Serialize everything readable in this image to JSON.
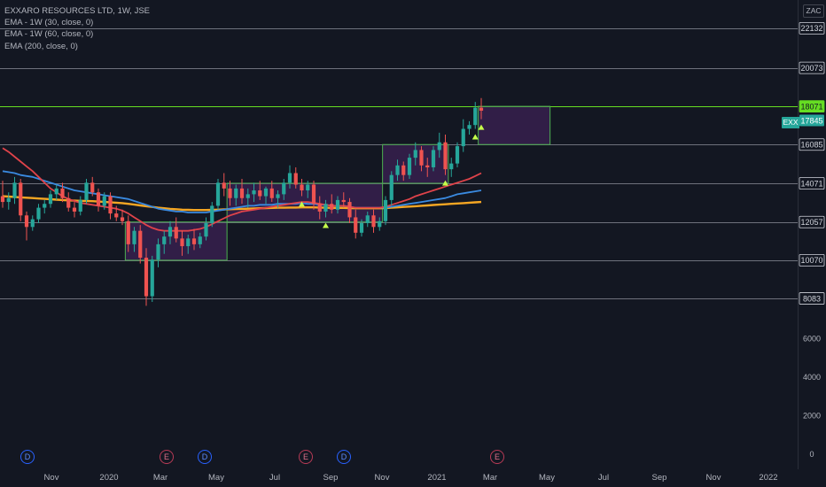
{
  "legend": {
    "title": "EXXARO RESOURCES LTD, 1W, JSE",
    "ema1": "EMA - 1W (30, close, 0)",
    "ema2": "EMA - 1W (60, close, 0)",
    "ema3": "EMA (200, close, 0)"
  },
  "currency": "ZAC",
  "symbol_tag": "EXX",
  "price_axis": {
    "level_labels": [
      "22132",
      "20073",
      "18071",
      "16085",
      "14071",
      "12057",
      "10070",
      "8083"
    ],
    "plain_labels": [
      "6000",
      "4000",
      "2000",
      "0"
    ],
    "last_price_label": "17845",
    "highlight_label": "18071"
  },
  "time_axis": [
    "Nov",
    "2020",
    "Mar",
    "May",
    "Jul",
    "Sep",
    "Nov",
    "2021",
    "Mar",
    "May",
    "Jul",
    "Sep",
    "Nov",
    "2022"
  ],
  "event_badges": [
    "D",
    "E",
    "D",
    "E",
    "D",
    "E"
  ],
  "colors": {
    "background": "#131722",
    "up": "#26a69a",
    "down": "#ef5350",
    "level_line": "#787b86",
    "box_border": "#4caf50",
    "highlight": "#66dd22",
    "ema30": "#e0434a",
    "ema60": "#3a8ae0",
    "ema200": "#f5a623"
  },
  "chart_data": {
    "type": "candlestick",
    "series_name": "EXXARO RESOURCES LTD",
    "ylim": [
      -800,
      23600
    ],
    "support_resistance_levels": [
      22132,
      20073,
      18071,
      16085,
      14071,
      12057,
      10070,
      8083
    ],
    "last_price": 17845,
    "candles": [
      [
        13400,
        14200,
        12800,
        13100
      ],
      [
        13100,
        13600,
        12700,
        13300
      ],
      [
        13300,
        14400,
        13000,
        14100
      ],
      [
        14100,
        14300,
        12100,
        12400
      ],
      [
        12400,
        12600,
        11100,
        11800
      ],
      [
        11800,
        12400,
        11600,
        12200
      ],
      [
        12200,
        13000,
        12000,
        12800
      ],
      [
        12800,
        13200,
        12500,
        13000
      ],
      [
        13000,
        13700,
        12800,
        13500
      ],
      [
        13500,
        14000,
        13200,
        13800
      ],
      [
        13800,
        14100,
        13100,
        13300
      ],
      [
        13300,
        13600,
        12600,
        12800
      ],
      [
        12800,
        13100,
        12300,
        12600
      ],
      [
        12600,
        13400,
        12400,
        13200
      ],
      [
        13200,
        14300,
        13000,
        14100
      ],
      [
        14100,
        14400,
        13400,
        13600
      ],
      [
        13600,
        13800,
        12600,
        12900
      ],
      [
        12900,
        13600,
        12700,
        13400
      ],
      [
        13400,
        13600,
        12200,
        12500
      ],
      [
        12500,
        12900,
        12100,
        12300
      ],
      [
        12300,
        12700,
        11900,
        12100
      ],
      [
        12100,
        12400,
        10500,
        10900
      ],
      [
        10900,
        11800,
        10500,
        11600
      ],
      [
        11600,
        11900,
        9900,
        10200
      ],
      [
        10200,
        10700,
        7700,
        8200
      ],
      [
        8200,
        10300,
        7900,
        10100
      ],
      [
        10100,
        11200,
        9700,
        10900
      ],
      [
        10900,
        11600,
        10400,
        11300
      ],
      [
        11300,
        12100,
        10900,
        11800
      ],
      [
        11800,
        12300,
        11000,
        11200
      ],
      [
        11200,
        11600,
        10300,
        10800
      ],
      [
        10800,
        11400,
        10400,
        11200
      ],
      [
        11200,
        11700,
        10600,
        10900
      ],
      [
        10900,
        11500,
        10700,
        11300
      ],
      [
        11300,
        12300,
        11100,
        12000
      ],
      [
        12000,
        13100,
        11800,
        12900
      ],
      [
        12900,
        14300,
        12700,
        14100
      ],
      [
        14100,
        14600,
        13400,
        13800
      ],
      [
        13800,
        14200,
        12900,
        13300
      ],
      [
        13300,
        14000,
        12900,
        13800
      ],
      [
        13800,
        14300,
        13000,
        13300
      ],
      [
        13300,
        13800,
        12800,
        13500
      ],
      [
        13500,
        14100,
        13100,
        13700
      ],
      [
        13700,
        14200,
        13200,
        13400
      ],
      [
        13400,
        13900,
        13000,
        13800
      ],
      [
        13800,
        14200,
        13100,
        13300
      ],
      [
        13300,
        13700,
        12800,
        13500
      ],
      [
        13500,
        14300,
        13200,
        14100
      ],
      [
        14100,
        15000,
        13800,
        14600
      ],
      [
        14600,
        14900,
        13800,
        14000
      ],
      [
        14000,
        14300,
        13400,
        13700
      ],
      [
        13700,
        14200,
        13300,
        14000
      ],
      [
        14000,
        14200,
        12700,
        13000
      ],
      [
        13000,
        13400,
        12200,
        12600
      ],
      [
        12600,
        13200,
        12300,
        13000
      ],
      [
        13000,
        13500,
        12500,
        12700
      ],
      [
        12700,
        13400,
        12500,
        13200
      ],
      [
        13200,
        13600,
        12800,
        13100
      ],
      [
        13100,
        13300,
        12000,
        12300
      ],
      [
        12300,
        12700,
        11200,
        11500
      ],
      [
        11500,
        12200,
        11300,
        12000
      ],
      [
        12000,
        12600,
        11800,
        12400
      ],
      [
        12400,
        12700,
        11500,
        11800
      ],
      [
        11800,
        12300,
        11600,
        12100
      ],
      [
        12100,
        13400,
        11900,
        13200
      ],
      [
        13200,
        14700,
        12900,
        14500
      ],
      [
        14500,
        15300,
        14200,
        15000
      ],
      [
        15000,
        15200,
        14200,
        14500
      ],
      [
        14500,
        15600,
        14300,
        15400
      ],
      [
        15400,
        16200,
        15000,
        15800
      ],
      [
        15800,
        16000,
        14700,
        15000
      ],
      [
        15000,
        15400,
        14400,
        14900
      ],
      [
        14900,
        16000,
        14700,
        15800
      ],
      [
        15800,
        16700,
        15400,
        16200
      ],
      [
        16200,
        16600,
        14500,
        14800
      ],
      [
        14800,
        15400,
        14400,
        15100
      ],
      [
        15100,
        16200,
        14900,
        16000
      ],
      [
        16000,
        17400,
        15700,
        16900
      ],
      [
        16900,
        17300,
        16600,
        17100
      ],
      [
        17100,
        18300,
        16900,
        18000
      ],
      [
        18000,
        18500,
        17400,
        17845
      ]
    ],
    "ema_30": [
      15900,
      15700,
      15450,
      15200,
      14950,
      14700,
      14400,
      14100,
      13800,
      13600,
      13400,
      13250,
      13150,
      13050,
      13000,
      12950,
      12900,
      12850,
      12800,
      12750,
      12650,
      12500,
      12300,
      12100,
      11900,
      11750,
      11650,
      11600,
      11600,
      11600,
      11600,
      11600,
      11650,
      11700,
      11800,
      11950,
      12100,
      12250,
      12400,
      12500,
      12600,
      12650,
      12700,
      12750,
      12800,
      12850,
      12900,
      12950,
      13000,
      13050,
      13100,
      13100,
      13050,
      13000,
      12950,
      12900,
      12900,
      12900,
      12850,
      12800,
      12800,
      12800,
      12800,
      12800,
      12850,
      12950,
      13050,
      13150,
      13250,
      13400,
      13500,
      13600,
      13700,
      13800,
      13900,
      14000,
      14100,
      14200,
      14300,
      14450,
      14600
    ],
    "ema_60": [
      14700,
      14650,
      14600,
      14500,
      14450,
      14400,
      14300,
      14200,
      14100,
      14000,
      13900,
      13800,
      13700,
      13650,
      13600,
      13550,
      13500,
      13450,
      13400,
      13350,
      13300,
      13250,
      13150,
      13050,
      12950,
      12850,
      12750,
      12700,
      12650,
      12600,
      12600,
      12550,
      12550,
      12550,
      12550,
      12600,
      12650,
      12700,
      12750,
      12800,
      12850,
      12900,
      12900,
      12950,
      12950,
      12950,
      13000,
      13000,
      13000,
      13000,
      13050,
      13000,
      13000,
      12950,
      12950,
      12900,
      12900,
      12900,
      12850,
      12800,
      12800,
      12800,
      12800,
      12800,
      12800,
      12850,
      12900,
      12950,
      13000,
      13050,
      13100,
      13150,
      13200,
      13250,
      13300,
      13400,
      13500,
      13550,
      13600,
      13650,
      13700
    ],
    "ema_200": [
      13400,
      13380,
      13360,
      13340,
      13320,
      13300,
      13280,
      13260,
      13240,
      13220,
      13200,
      13180,
      13170,
      13160,
      13150,
      13140,
      13120,
      13100,
      13080,
      13060,
      13040,
      13000,
      12960,
      12920,
      12880,
      12840,
      12800,
      12770,
      12740,
      12720,
      12700,
      12690,
      12680,
      12680,
      12680,
      12690,
      12700,
      12710,
      12720,
      12730,
      12740,
      12750,
      12760,
      12770,
      12780,
      12790,
      12800,
      12800,
      12810,
      12810,
      12820,
      12820,
      12820,
      12810,
      12800,
      12790,
      12790,
      12790,
      12780,
      12770,
      12770,
      12770,
      12770,
      12770,
      12780,
      12800,
      12820,
      12840,
      12860,
      12880,
      12900,
      12920,
      12940,
      12960,
      12980,
      13000,
      13020,
      13040,
      13060,
      13080,
      13100
    ],
    "range_boxes": [
      {
        "start_index": 21,
        "end_index": 38,
        "low": 10070,
        "high": 12057
      },
      {
        "start_index": 38,
        "end_index": 64,
        "low": 12057,
        "high": 14071
      },
      {
        "start_index": 64,
        "end_index": 75,
        "low": 14071,
        "high": 16085
      },
      {
        "start_index": 80,
        "end_index": 92,
        "low": 16085,
        "high": 18071
      }
    ],
    "buy_markers_index": [
      50,
      54,
      74,
      79,
      80
    ],
    "ytick_values": [
      0,
      2000,
      4000,
      6000
    ]
  }
}
